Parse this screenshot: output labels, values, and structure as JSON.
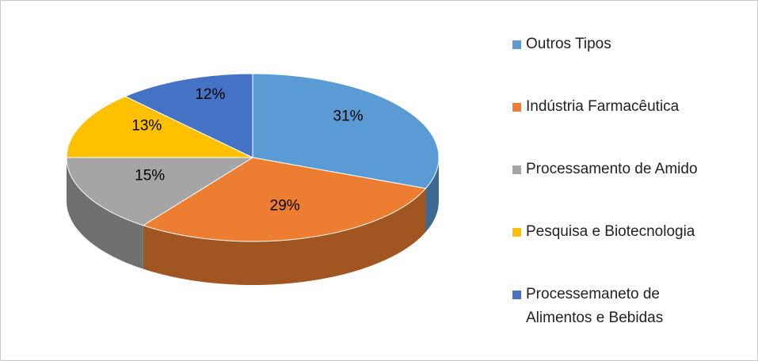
{
  "chart_data": {
    "type": "pie",
    "categories": [
      "Outros Tipos",
      "Indústria Farmacêutica",
      "Processamento de Amido",
      "Pesquisa e Biotecnologia",
      "Processemaneto de Alimentos e Bebidas"
    ],
    "values": [
      31,
      29,
      15,
      13,
      12
    ],
    "value_labels": [
      "31%",
      "29%",
      "15%",
      "13%",
      "12%"
    ],
    "colors": [
      "#5b9bd5",
      "#ed7d31",
      "#a5a5a5",
      "#ffc000",
      "#4472c4"
    ],
    "legend": "right"
  }
}
